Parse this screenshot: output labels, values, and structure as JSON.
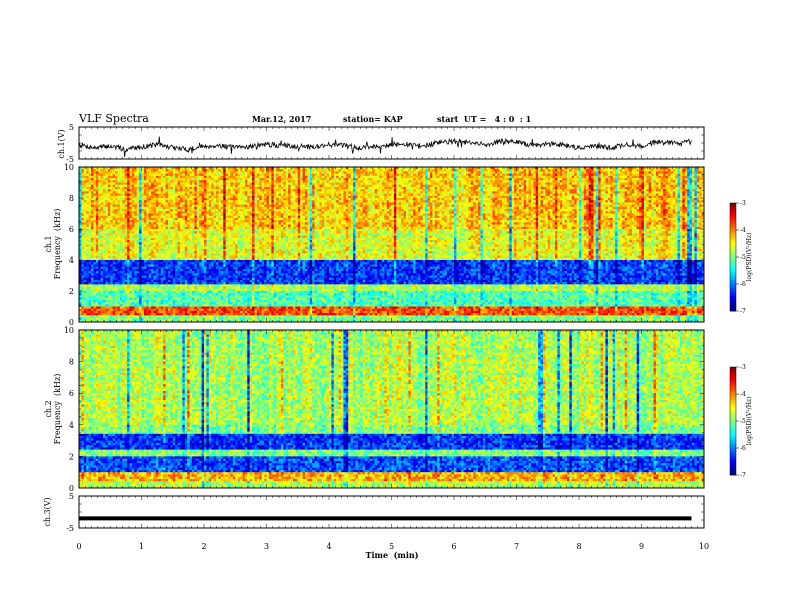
{
  "header": {
    "title": "VLF Spectra",
    "date": "Mar.12, 2017",
    "station": "station= KAP",
    "start_ut": "start  UT =   4 : 0  : 1"
  },
  "chart_data": [
    {
      "type": "line",
      "panel": "ch1-waveform",
      "ylabel": "ch.1(V)",
      "yticks": [
        "5",
        "-5"
      ],
      "ylim": [
        -5,
        5
      ],
      "x": [
        0,
        0.25,
        0.5,
        0.75,
        1,
        1.25,
        1.5,
        1.75,
        2,
        2.25,
        2.5,
        2.75,
        3,
        3.25,
        3.5,
        3.75,
        4,
        4.25,
        4.5,
        4.75,
        5,
        5.25,
        5.5,
        5.75,
        6,
        6.25,
        6.5,
        6.75,
        7,
        7.25,
        7.5,
        7.75,
        8,
        8.25,
        8.5,
        8.75,
        9,
        9.25,
        9.5,
        9.75,
        9.8
      ],
      "y": [
        -0.5,
        -1.5,
        -1.0,
        -2.0,
        -1.2,
        -0.5,
        -1.5,
        -2.0,
        -1.0,
        -0.8,
        -1.5,
        -1.0,
        -0.5,
        -0.8,
        -1.0,
        -1.2,
        -0.5,
        -0.8,
        -1.5,
        -1.0,
        -0.5,
        -0.5,
        -1.0,
        0.2,
        0.5,
        0.0,
        -0.5,
        0.5,
        0.3,
        -0.8,
        -0.3,
        -0.5,
        -1.5,
        -1.0,
        -1.5,
        -0.5,
        -1.0,
        0.5,
        0.0,
        0.3,
        0.0
      ]
    },
    {
      "type": "heatmap",
      "panel": "ch1-spectrogram",
      "ylabel_line1": "ch.1",
      "ylabel_line2": "Frequency  (kHz)",
      "yticks": [
        "0",
        "2",
        "4",
        "6",
        "8",
        "10"
      ],
      "ylim": [
        0,
        10
      ],
      "xlim": [
        0,
        10
      ],
      "colorbar": {
        "label": "log(PSD)(V²/Hz)",
        "min": -7,
        "max": -3,
        "ticks": [
          "-3",
          "-4",
          "-5",
          "-6",
          "-7"
        ]
      },
      "level_by_frequency_khz": {
        "0-0.5": -5.0,
        "0.5-1": -3.8,
        "1-2": -5.2,
        "2-2.4": -4.8,
        "2.4-4": -6.3,
        "4-6": -4.6,
        "6-10": -4.3
      }
    },
    {
      "type": "heatmap",
      "panel": "ch2-spectrogram",
      "ylabel_line1": "ch.2",
      "ylabel_line2": "Frequency  (kHz)",
      "yticks": [
        "0",
        "2",
        "4",
        "6",
        "8",
        "10"
      ],
      "ylim": [
        0,
        10
      ],
      "xlim": [
        0,
        10
      ],
      "colorbar": {
        "label": "log(PSD)(V²/Hz)",
        "min": -7,
        "max": -3,
        "ticks": [
          "-3",
          "-4",
          "-5",
          "-6",
          "-7"
        ]
      },
      "level_by_frequency_khz": {
        "0-0.5": -4.8,
        "0.5-1": -4.2,
        "1-2": -6.2,
        "2-2.5": -5.0,
        "2.5-3.5": -6.3,
        "3.5-4": -5.0,
        "4-10": -4.8
      }
    },
    {
      "type": "line",
      "panel": "ch3-waveform",
      "ylabel": "ch.3(V)",
      "yticks": [
        "5",
        "-5"
      ],
      "ylim": [
        -5,
        5
      ],
      "x": [
        0,
        9.8
      ],
      "y": [
        -2,
        -2
      ]
    }
  ],
  "xaxis": {
    "label": "Time  (min)",
    "ticks": [
      "0",
      "1",
      "2",
      "3",
      "4",
      "5",
      "6",
      "7",
      "8",
      "9",
      "10"
    ]
  }
}
